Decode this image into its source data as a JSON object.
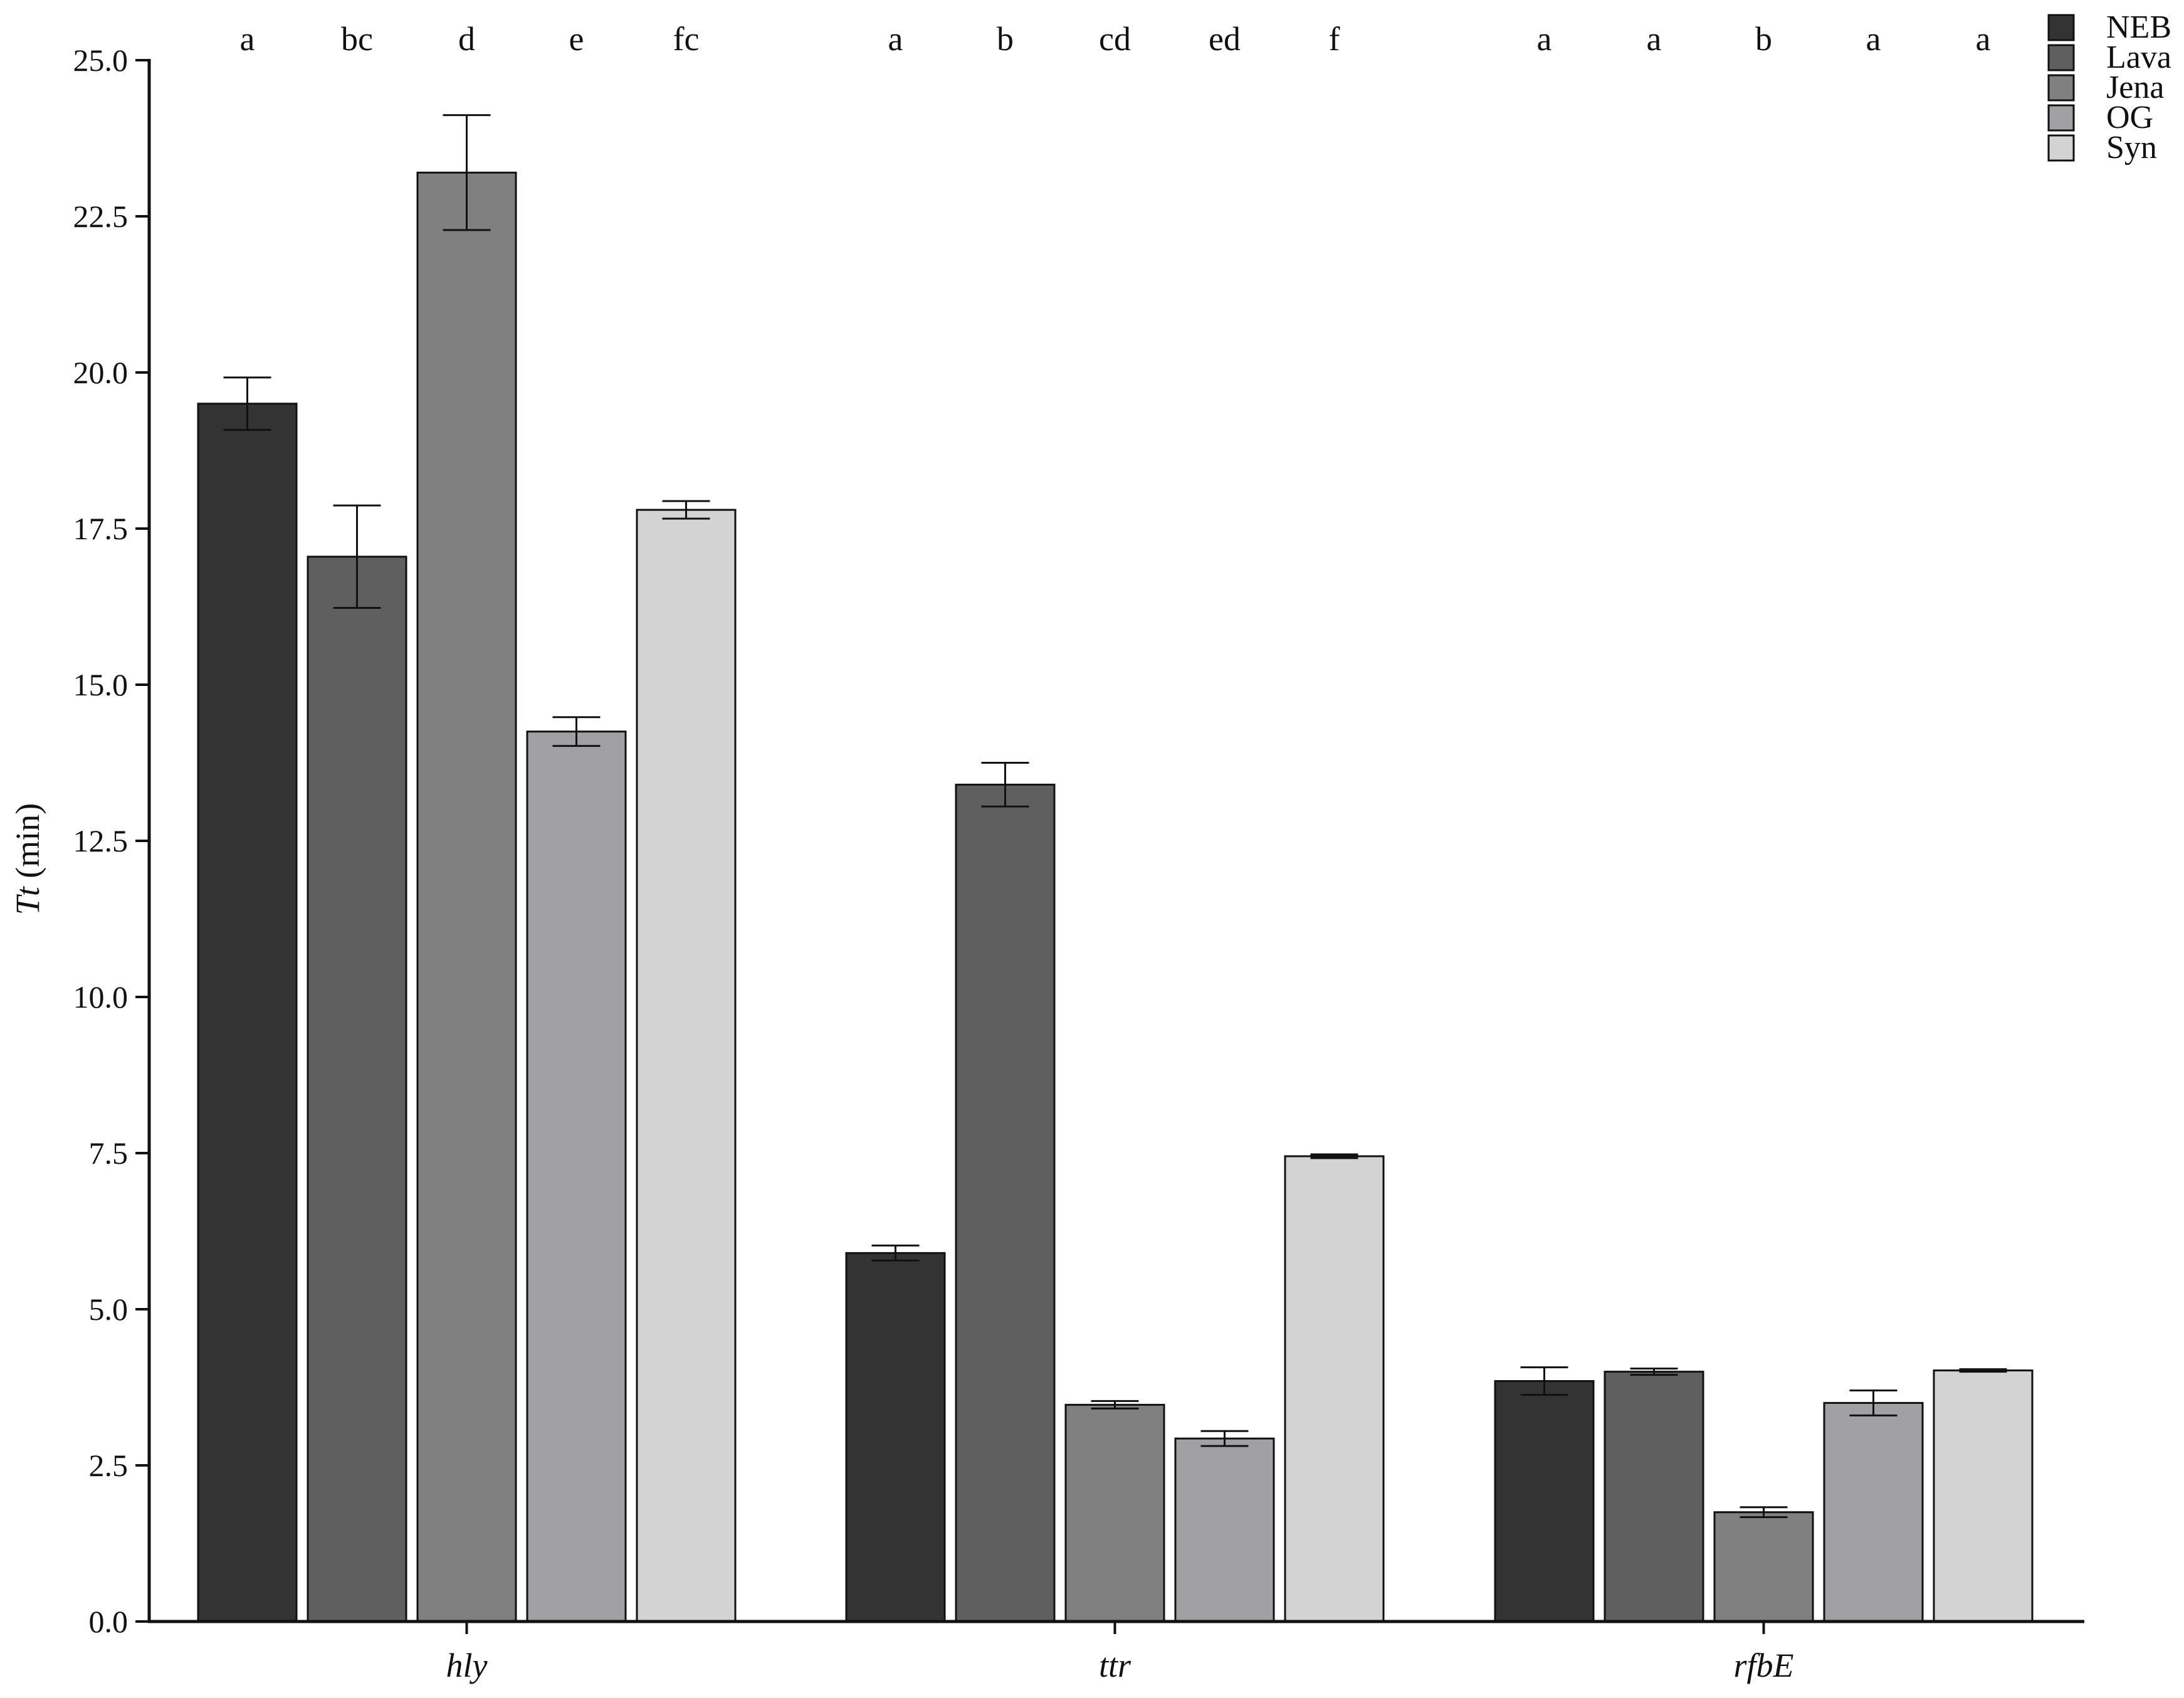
{
  "chart_data": {
    "type": "bar",
    "ylabel": {
      "italic_part": "Tt",
      "rest": " (min)"
    },
    "ylim": [
      0,
      25
    ],
    "yticks": [
      "0.0",
      "2.5",
      "5.0",
      "7.5",
      "10.0",
      "12.5",
      "15.0",
      "17.5",
      "20.0",
      "22.5",
      "25.0"
    ],
    "categories": [
      "hly",
      "ttr",
      "rfbE"
    ],
    "legend_position": "top-right",
    "grid": false,
    "series": [
      {
        "name": "NEB",
        "color": "#333333",
        "values": [
          19.5,
          5.9,
          3.85
        ],
        "errors": [
          0.42,
          0.12,
          0.22
        ]
      },
      {
        "name": "Lava",
        "color": "#5f5f5f",
        "values": [
          17.05,
          13.4,
          4.0
        ],
        "errors": [
          0.82,
          0.35,
          0.05
        ]
      },
      {
        "name": "Jena",
        "color": "#808080",
        "values": [
          23.2,
          3.47,
          1.75
        ],
        "errors": [
          0.92,
          0.06,
          0.08
        ]
      },
      {
        "name": "OG",
        "color": "#a1a1a5",
        "values": [
          14.25,
          2.93,
          3.5
        ],
        "errors": [
          0.23,
          0.12,
          0.2
        ]
      },
      {
        "name": "Syn",
        "color": "#d3d3d3",
        "values": [
          17.8,
          7.45,
          4.02
        ],
        "errors": [
          0.14,
          0.03,
          0.02
        ]
      }
    ],
    "significance_letters": [
      [
        "a",
        "bc",
        "d",
        "e",
        "fc"
      ],
      [
        "a",
        "b",
        "cd",
        "ed",
        "f"
      ],
      [
        "a",
        "a",
        "b",
        "a",
        "a"
      ]
    ]
  }
}
